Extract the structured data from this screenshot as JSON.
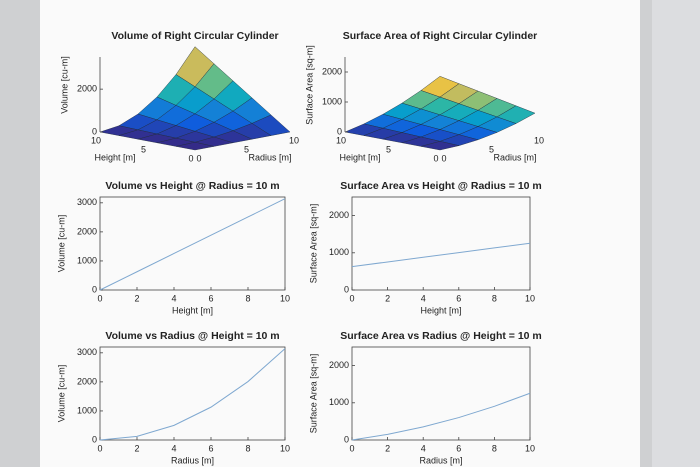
{
  "chart_data": [
    {
      "type": "surface",
      "title": "Volume of Right Circular Cylinder",
      "xlabel": "Radius [m]",
      "ylabel": "Height [m]",
      "zlabel": "Volume [cu-m]",
      "x": [
        0,
        2,
        4,
        6,
        8,
        10
      ],
      "y": [
        0,
        2,
        4,
        6,
        8,
        10
      ],
      "z": [
        [
          0,
          0,
          0,
          0,
          0,
          0
        ],
        [
          0,
          25,
          101,
          226,
          402,
          628
        ],
        [
          0,
          50,
          201,
          452,
          804,
          1257
        ],
        [
          0,
          75,
          302,
          679,
          1206,
          1885
        ],
        [
          0,
          101,
          402,
          905,
          1608,
          2513
        ],
        [
          0,
          126,
          503,
          1131,
          2011,
          3142
        ]
      ],
      "xlim": [
        0,
        10
      ],
      "xticks": [
        0,
        5,
        10
      ],
      "ylim": [
        0,
        10
      ],
      "yticks": [
        0,
        5,
        10
      ],
      "zlim": [
        0,
        3500
      ],
      "zticks": [
        0,
        2000
      ]
    },
    {
      "type": "surface",
      "title": "Surface Area of Right Circular Cylinder",
      "xlabel": "Radius [m]",
      "ylabel": "Height [m]",
      "zlabel": "Surface Area [sq-m]",
      "x": [
        0,
        2,
        4,
        6,
        8,
        10
      ],
      "y": [
        0,
        2,
        4,
        6,
        8,
        10
      ],
      "z": [
        [
          0,
          25,
          101,
          226,
          402,
          628
        ],
        [
          0,
          50,
          151,
          302,
          503,
          754
        ],
        [
          0,
          75,
          201,
          377,
          603,
          880
        ],
        [
          0,
          101,
          251,
          452,
          704,
          1005
        ],
        [
          0,
          126,
          302,
          528,
          804,
          1131
        ],
        [
          0,
          151,
          352,
          603,
          905,
          1257
        ]
      ],
      "xlim": [
        0,
        10
      ],
      "xticks": [
        0,
        5,
        10
      ],
      "ylim": [
        0,
        10
      ],
      "yticks": [
        0,
        5,
        10
      ],
      "zlim": [
        0,
        2500
      ],
      "zticks": [
        0,
        1000,
        2000
      ]
    },
    {
      "type": "line",
      "title": "Volume vs Height @ Radius = 10 m",
      "xlabel": "Height [m]",
      "ylabel": "Volume [cu-m]",
      "x": [
        0,
        2,
        4,
        6,
        8,
        10
      ],
      "values": [
        0,
        628,
        1257,
        1885,
        2513,
        3142
      ],
      "color": "#7fa8d0",
      "xlim": [
        0,
        10
      ],
      "xticks": [
        0,
        2,
        4,
        6,
        8,
        10
      ],
      "ylim": [
        0,
        3200
      ],
      "yticks": [
        0,
        1000,
        2000,
        3000
      ]
    },
    {
      "type": "line",
      "title": "Surface Area vs Height @ Radius = 10 m",
      "xlabel": "Height [m]",
      "ylabel": "Surface Area [sq-m]",
      "x": [
        0,
        2,
        4,
        6,
        8,
        10
      ],
      "values": [
        628,
        754,
        880,
        1005,
        1131,
        1257
      ],
      "color": "#7fa8d0",
      "xlim": [
        0,
        10
      ],
      "xticks": [
        0,
        2,
        4,
        6,
        8,
        10
      ],
      "ylim": [
        0,
        2500
      ],
      "yticks": [
        0,
        1000,
        2000
      ]
    },
    {
      "type": "line",
      "title": "Volume vs Radius @ Height = 10 m",
      "xlabel": "Radius [m]",
      "ylabel": "Volume [cu-m]",
      "x": [
        0,
        2,
        4,
        6,
        8,
        10
      ],
      "values": [
        0,
        126,
        503,
        1131,
        2011,
        3142
      ],
      "color": "#7fa8d0",
      "xlim": [
        0,
        10
      ],
      "xticks": [
        0,
        2,
        4,
        6,
        8,
        10
      ],
      "ylim": [
        0,
        3200
      ],
      "yticks": [
        0,
        1000,
        2000,
        3000
      ]
    },
    {
      "type": "line",
      "title": "Surface Area  vs Radius @ Height = 10 m",
      "xlabel": "Radius [m]",
      "ylabel": "Surface Area [sq-m]",
      "x": [
        0,
        2,
        4,
        6,
        8,
        10
      ],
      "values": [
        0,
        151,
        352,
        603,
        905,
        1257
      ],
      "color": "#7fa8d0",
      "xlim": [
        0,
        10
      ],
      "xticks": [
        0,
        2,
        4,
        6,
        8,
        10
      ],
      "ylim": [
        0,
        2500
      ],
      "yticks": [
        0,
        1000,
        2000
      ]
    }
  ]
}
